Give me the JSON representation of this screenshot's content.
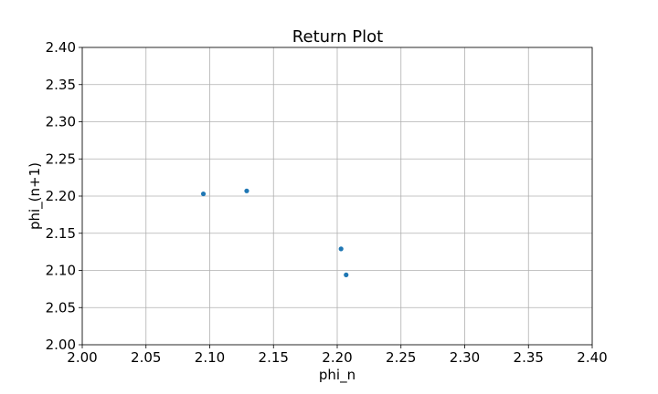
{
  "chart_data": {
    "type": "scatter",
    "title": "Return Plot",
    "xlabel": "phi_n",
    "ylabel": "phi_(n+1)",
    "xlim": [
      2.0,
      2.4
    ],
    "ylim": [
      2.0,
      2.4
    ],
    "xticks": [
      "2.00",
      "2.05",
      "2.10",
      "2.15",
      "2.20",
      "2.25",
      "2.30",
      "2.35",
      "2.40"
    ],
    "yticks": [
      "2.00",
      "2.05",
      "2.10",
      "2.15",
      "2.20",
      "2.25",
      "2.30",
      "2.35",
      "2.40"
    ],
    "grid": true,
    "legend": false,
    "marker_color": "#1f77b4",
    "points": [
      {
        "x": 2.095,
        "y": 2.203
      },
      {
        "x": 2.129,
        "y": 2.207
      },
      {
        "x": 2.203,
        "y": 2.129
      },
      {
        "x": 2.207,
        "y": 2.094
      }
    ]
  }
}
